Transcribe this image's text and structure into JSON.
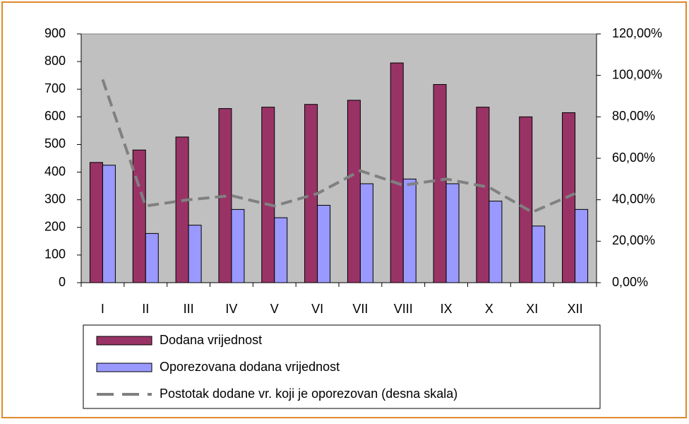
{
  "chart_data": {
    "type": "bar",
    "categories": [
      "I",
      "II",
      "III",
      "IV",
      "V",
      "VI",
      "VII",
      "VIII",
      "IX",
      "X",
      "XI",
      "XII"
    ],
    "series": [
      {
        "name": "Dodana vrijednost",
        "color": "#993366",
        "values": [
          435,
          480,
          527,
          630,
          635,
          645,
          660,
          795,
          717,
          635,
          600,
          615
        ]
      },
      {
        "name": "Oporezovana dodana vrijednost",
        "color": "#9999ff",
        "values": [
          425,
          178,
          208,
          265,
          235,
          280,
          358,
          375,
          358,
          295,
          205,
          265
        ]
      },
      {
        "name": "Postotak dodane vr. koji je oporezovan (desna skala)",
        "color": "#808080",
        "type": "line",
        "axis": "y2",
        "values": [
          98,
          37,
          40,
          42,
          37,
          43,
          54,
          47,
          50,
          46,
          34,
          43
        ]
      }
    ],
    "ylim": [
      0,
      900
    ],
    "yticks": [
      0,
      100,
      200,
      300,
      400,
      500,
      600,
      700,
      800,
      900
    ],
    "y2lim": [
      0,
      120
    ],
    "y2ticks": [
      {
        "value": 0,
        "label": "0,00%"
      },
      {
        "value": 20,
        "label": "20,00%"
      },
      {
        "value": 40,
        "label": "40,00%"
      },
      {
        "value": 60,
        "label": "60,00%"
      },
      {
        "value": 80,
        "label": "80,00%"
      },
      {
        "value": 100,
        "label": "100,00%"
      },
      {
        "value": 120,
        "label": "120,00%"
      }
    ],
    "plot_background": "#c0c0c0"
  }
}
